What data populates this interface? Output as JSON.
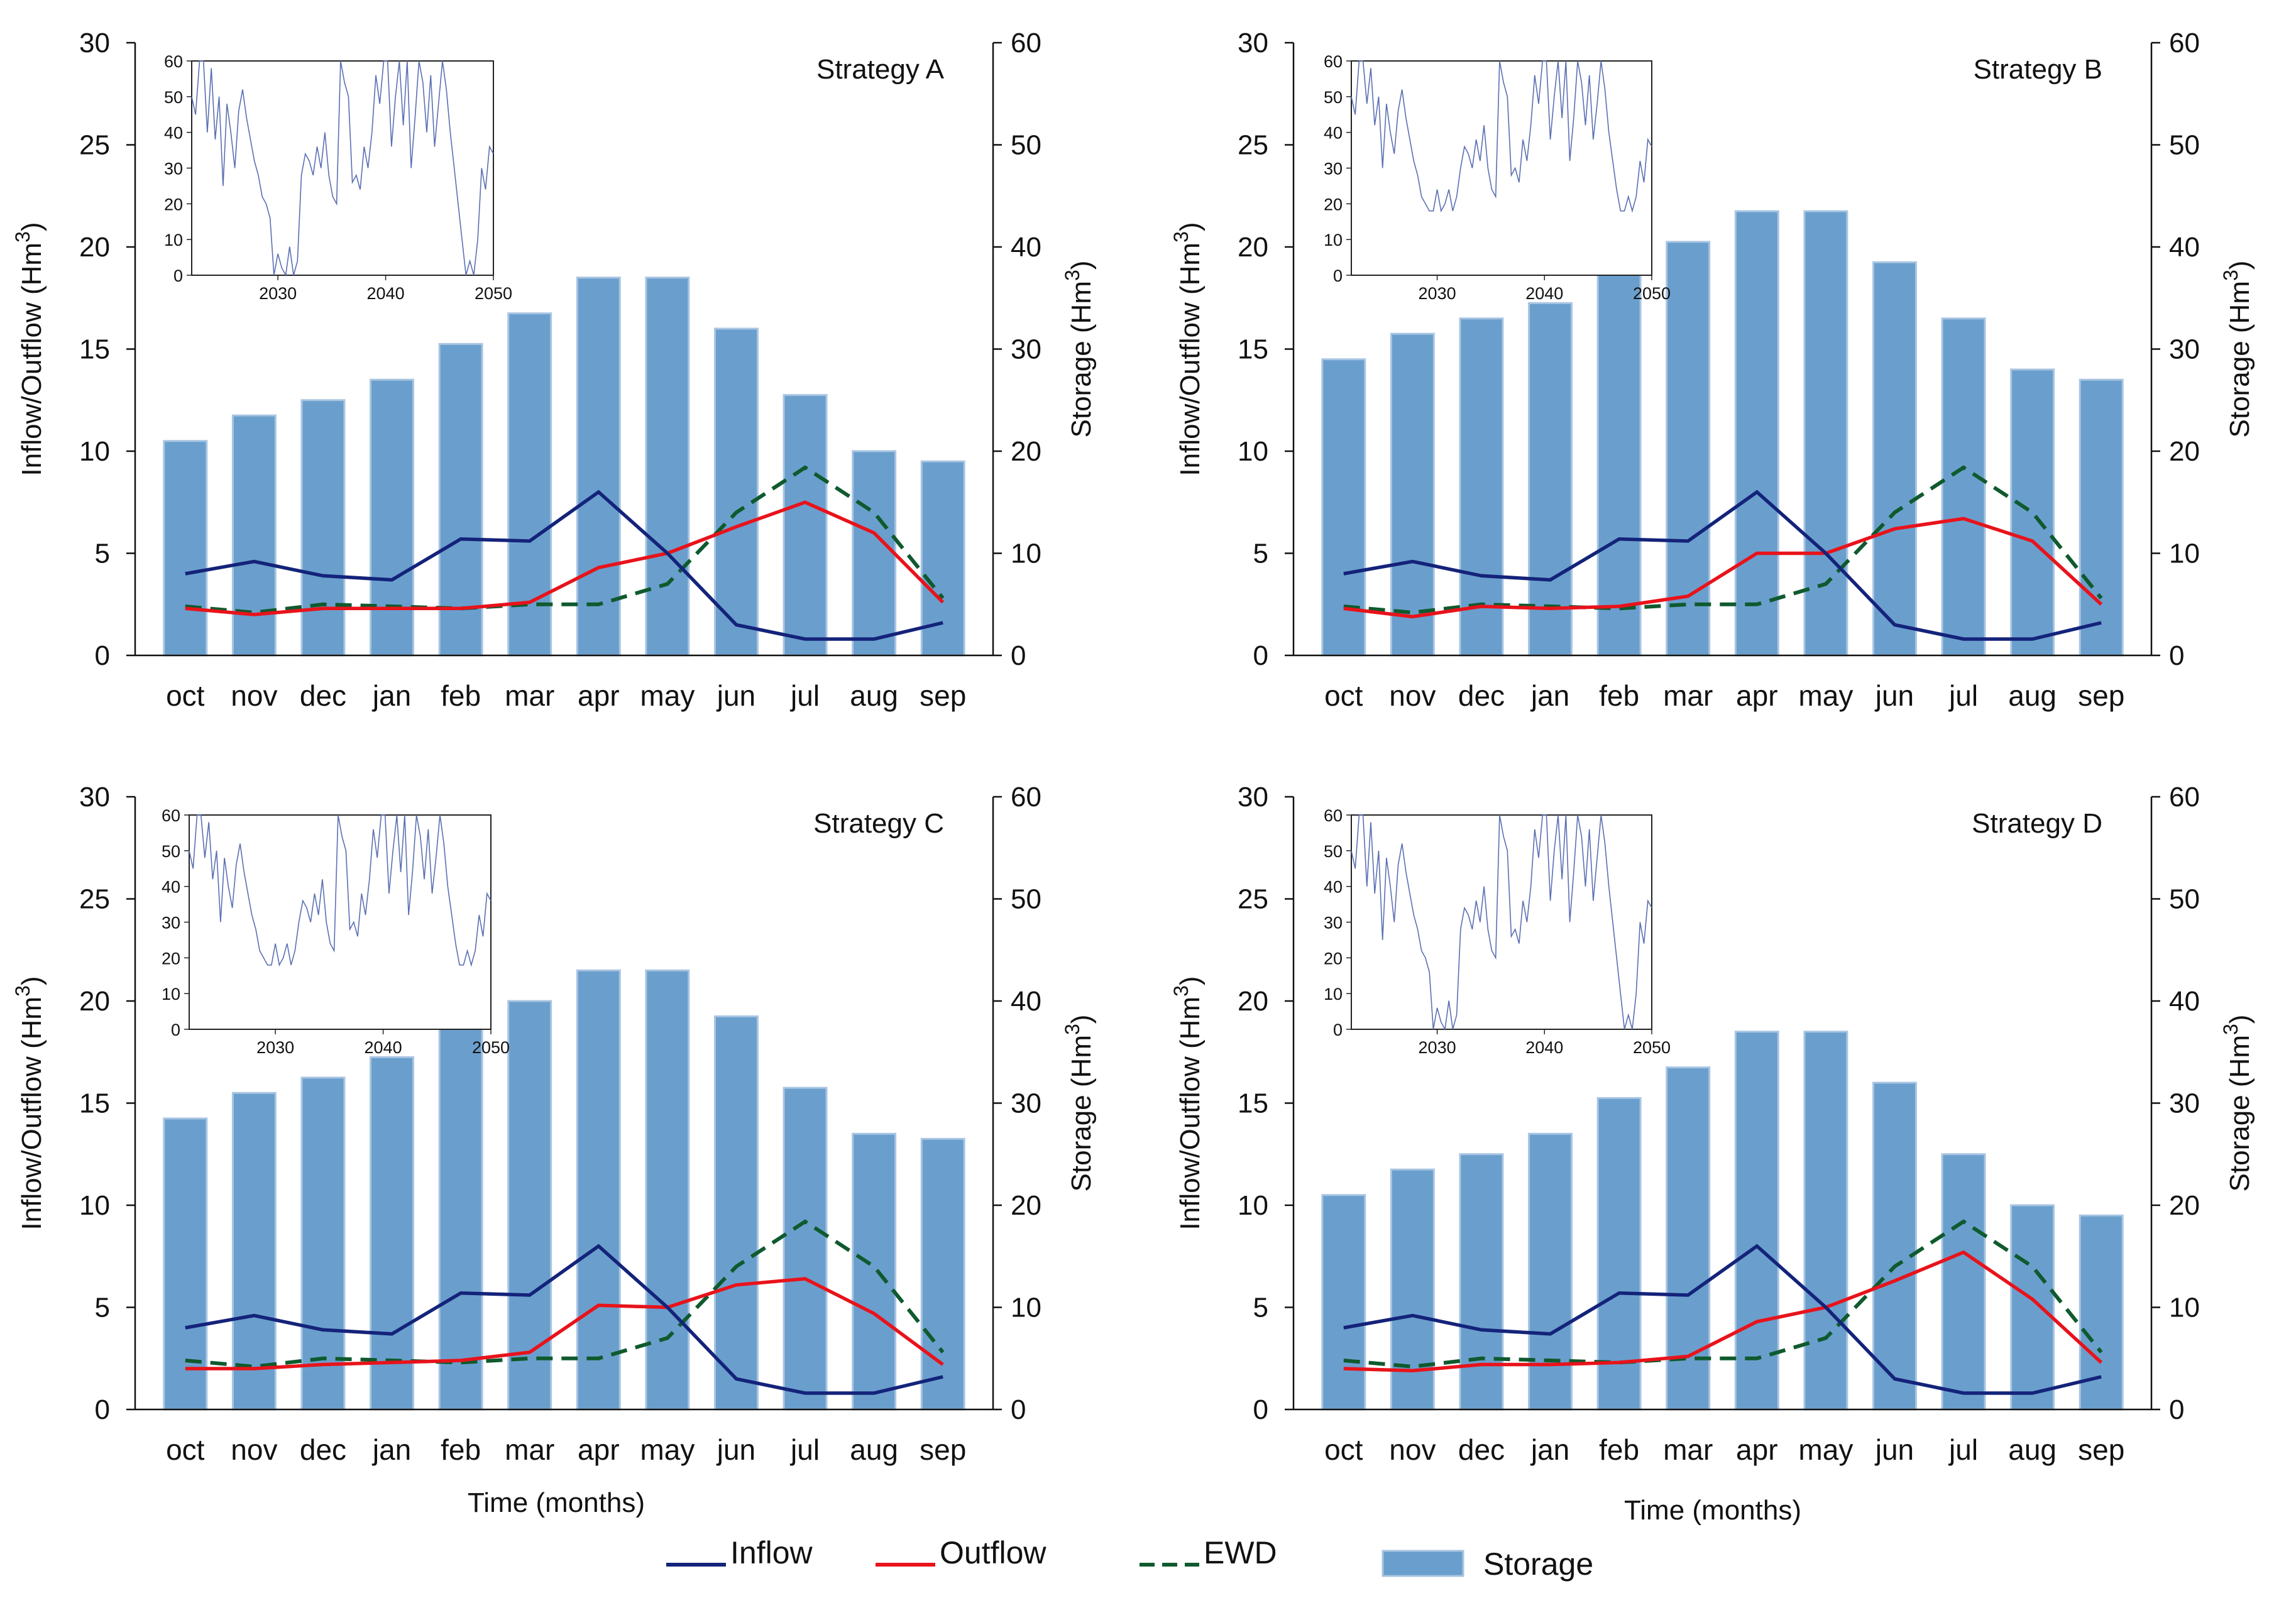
{
  "colors": {
    "inflow": "#14237a",
    "outflow": "#e8131b",
    "ewd": "#0f5a2e",
    "storage_fill": "#6a9fcd",
    "storage_edge": "#a9c5e2",
    "inset_line": "#5a6fb3"
  },
  "axes_text": {
    "left_ylabel": "Inflow/Outflow (Hm3)",
    "right_ylabel": "Storage (Hm3)",
    "xlabel": "Time (months)",
    "left_ticks": [
      "0",
      "5",
      "10",
      "15",
      "20",
      "25",
      "30"
    ],
    "right_ticks": [
      "0",
      "10",
      "20",
      "30",
      "40",
      "50",
      "60"
    ],
    "inset_yticks": [
      "0",
      "10",
      "20",
      "30",
      "40",
      "50",
      "60"
    ],
    "inset_xticks": [
      "2030",
      "2040",
      "2050"
    ]
  },
  "legend": [
    {
      "key": "inflow",
      "label": "Inflow"
    },
    {
      "key": "outflow",
      "label": "Outflow"
    },
    {
      "key": "ewd",
      "label": "EWD"
    },
    {
      "key": "storage",
      "label": "Storage"
    }
  ],
  "chart_data": [
    {
      "type": "bar+line",
      "title": "Strategy A",
      "categories": [
        "oct",
        "nov",
        "dec",
        "jan",
        "feb",
        "mar",
        "apr",
        "may",
        "jun",
        "jul",
        "aug",
        "sep"
      ],
      "left_ylim": [
        0,
        30
      ],
      "right_ylim": [
        0,
        60
      ],
      "inflow": [
        4.0,
        4.6,
        3.9,
        3.7,
        5.7,
        5.6,
        8.0,
        5.0,
        1.5,
        0.8,
        0.8,
        1.6
      ],
      "outflow": [
        2.3,
        2.0,
        2.3,
        2.3,
        2.3,
        2.6,
        4.3,
        5.0,
        6.3,
        7.5,
        6.0,
        2.6
      ],
      "ewd": [
        2.4,
        2.1,
        2.5,
        2.4,
        2.3,
        2.5,
        2.5,
        3.5,
        7.0,
        9.2,
        7.0,
        2.8
      ],
      "storage": [
        21,
        23.5,
        25,
        27,
        30.5,
        33.5,
        37,
        37,
        32,
        25.5,
        20,
        19
      ],
      "inset": {
        "ylim": [
          0,
          60
        ],
        "xlim": [
          2022,
          2050
        ],
        "values": [
          50,
          45,
          60,
          60,
          40,
          58,
          38,
          50,
          25,
          48,
          40,
          30,
          46,
          52,
          44,
          38,
          32,
          28,
          22,
          20,
          16,
          0,
          6,
          2,
          0,
          8,
          0,
          4,
          28,
          34,
          32,
          28,
          36,
          30,
          40,
          28,
          22,
          20,
          60,
          54,
          50,
          26,
          28,
          24,
          36,
          30,
          40,
          56,
          48,
          60,
          60,
          36,
          50,
          60,
          42,
          60,
          30,
          44,
          60,
          54,
          40,
          56,
          36,
          48,
          60,
          52,
          40,
          30,
          20,
          10,
          0,
          4,
          0,
          10,
          30,
          24,
          36,
          34
        ]
      }
    },
    {
      "type": "bar+line",
      "title": "Strategy B",
      "categories": [
        "oct",
        "nov",
        "dec",
        "jan",
        "feb",
        "mar",
        "apr",
        "may",
        "jun",
        "jul",
        "aug",
        "sep"
      ],
      "left_ylim": [
        0,
        30
      ],
      "right_ylim": [
        0,
        60
      ],
      "inflow": [
        4.0,
        4.6,
        3.9,
        3.7,
        5.7,
        5.6,
        8.0,
        5.0,
        1.5,
        0.8,
        0.8,
        1.6
      ],
      "outflow": [
        2.3,
        1.9,
        2.4,
        2.3,
        2.4,
        2.9,
        5.0,
        5.0,
        6.2,
        6.7,
        5.6,
        2.5
      ],
      "ewd": [
        2.4,
        2.1,
        2.5,
        2.4,
        2.3,
        2.5,
        2.5,
        3.5,
        7.0,
        9.2,
        7.0,
        2.8
      ],
      "storage": [
        29,
        31.5,
        33,
        34.5,
        38,
        40.5,
        43.5,
        43.5,
        38.5,
        33,
        28,
        27
      ],
      "inset": {
        "ylim": [
          0,
          60
        ],
        "xlim": [
          2022,
          2050
        ],
        "values": [
          50,
          45,
          60,
          60,
          48,
          58,
          42,
          50,
          30,
          48,
          40,
          34,
          46,
          52,
          44,
          38,
          32,
          28,
          22,
          20,
          18,
          18,
          24,
          18,
          20,
          24,
          18,
          22,
          30,
          36,
          34,
          30,
          38,
          32,
          42,
          30,
          24,
          22,
          60,
          54,
          50,
          28,
          30,
          26,
          38,
          32,
          42,
          56,
          48,
          60,
          60,
          38,
          50,
          60,
          44,
          60,
          32,
          44,
          60,
          54,
          42,
          56,
          38,
          48,
          60,
          52,
          40,
          32,
          24,
          18,
          18,
          22,
          18,
          22,
          32,
          26,
          38,
          36
        ]
      }
    },
    {
      "type": "bar+line",
      "title": "Strategy C",
      "categories": [
        "oct",
        "nov",
        "dec",
        "jan",
        "feb",
        "mar",
        "apr",
        "may",
        "jun",
        "jul",
        "aug",
        "sep"
      ],
      "left_ylim": [
        0,
        30
      ],
      "right_ylim": [
        0,
        60
      ],
      "inflow": [
        4.0,
        4.6,
        3.9,
        3.7,
        5.7,
        5.6,
        8.0,
        5.0,
        1.5,
        0.8,
        0.8,
        1.6
      ],
      "outflow": [
        2.0,
        2.0,
        2.2,
        2.3,
        2.4,
        2.8,
        5.1,
        5.0,
        6.1,
        6.4,
        4.7,
        2.2
      ],
      "ewd": [
        2.4,
        2.1,
        2.5,
        2.4,
        2.3,
        2.5,
        2.5,
        3.5,
        7.0,
        9.2,
        7.0,
        2.8
      ],
      "storage": [
        28.5,
        31,
        32.5,
        34.5,
        37.5,
        40,
        43,
        43,
        38.5,
        31.5,
        27,
        26.5
      ],
      "inset": {
        "ylim": [
          0,
          60
        ],
        "xlim": [
          2022,
          2050
        ],
        "values": [
          50,
          45,
          60,
          60,
          48,
          58,
          42,
          50,
          30,
          48,
          40,
          34,
          46,
          52,
          44,
          38,
          32,
          28,
          22,
          20,
          18,
          18,
          24,
          18,
          20,
          24,
          18,
          22,
          30,
          36,
          34,
          30,
          38,
          32,
          42,
          30,
          24,
          22,
          60,
          54,
          50,
          28,
          30,
          26,
          38,
          32,
          42,
          56,
          48,
          60,
          60,
          38,
          50,
          60,
          44,
          60,
          32,
          44,
          60,
          54,
          42,
          56,
          38,
          48,
          60,
          52,
          40,
          32,
          24,
          18,
          18,
          22,
          18,
          22,
          32,
          26,
          38,
          36
        ]
      }
    },
    {
      "type": "bar+line",
      "title": "Strategy D",
      "categories": [
        "oct",
        "nov",
        "dec",
        "jan",
        "feb",
        "mar",
        "apr",
        "may",
        "jun",
        "jul",
        "aug",
        "sep"
      ],
      "left_ylim": [
        0,
        30
      ],
      "right_ylim": [
        0,
        60
      ],
      "inflow": [
        4.0,
        4.6,
        3.9,
        3.7,
        5.7,
        5.6,
        8.0,
        5.0,
        1.5,
        0.8,
        0.8,
        1.6
      ],
      "outflow": [
        2.0,
        1.9,
        2.2,
        2.2,
        2.3,
        2.6,
        4.3,
        5.0,
        6.3,
        7.7,
        5.4,
        2.3
      ],
      "ewd": [
        2.4,
        2.1,
        2.5,
        2.4,
        2.3,
        2.5,
        2.5,
        3.5,
        7.0,
        9.2,
        7.0,
        2.8
      ],
      "storage": [
        21,
        23.5,
        25,
        27,
        30.5,
        33.5,
        37,
        37,
        32,
        25,
        20,
        19
      ],
      "inset": {
        "ylim": [
          0,
          60
        ],
        "xlim": [
          2022,
          2050
        ],
        "values": [
          50,
          45,
          60,
          60,
          40,
          58,
          38,
          50,
          25,
          48,
          40,
          30,
          46,
          52,
          44,
          38,
          32,
          28,
          22,
          20,
          16,
          0,
          6,
          2,
          0,
          8,
          0,
          4,
          28,
          34,
          32,
          28,
          36,
          30,
          40,
          28,
          22,
          20,
          60,
          54,
          50,
          26,
          28,
          24,
          36,
          30,
          40,
          56,
          48,
          60,
          60,
          36,
          50,
          60,
          42,
          60,
          30,
          44,
          60,
          54,
          40,
          56,
          36,
          48,
          60,
          52,
          40,
          30,
          20,
          10,
          0,
          4,
          0,
          10,
          30,
          24,
          36,
          34
        ]
      }
    }
  ]
}
